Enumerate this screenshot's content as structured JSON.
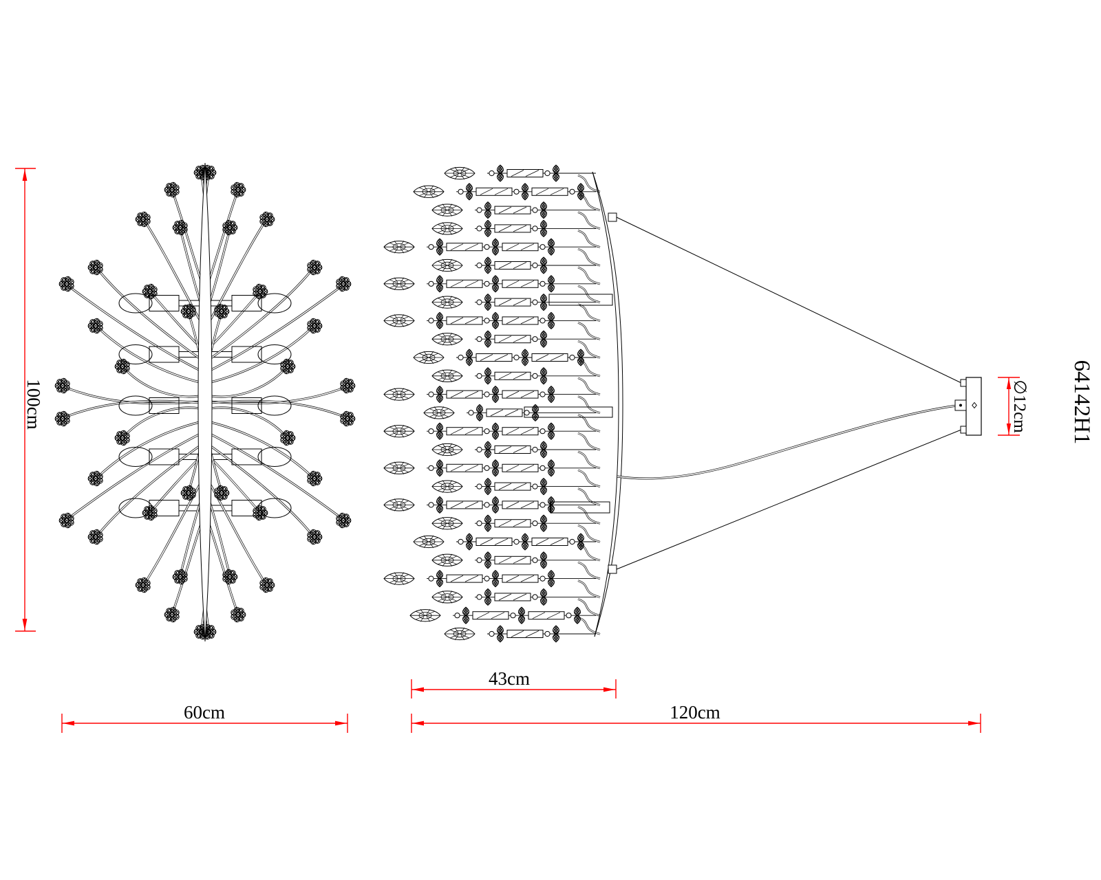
{
  "model_number": "64142H1",
  "dimensions": {
    "height": "100cm",
    "top_view_width": "60cm",
    "fixture_body_width": "43cm",
    "overall_width": "120cm",
    "canopy_diameter": "∅12cm"
  },
  "colors": {
    "dimension_lines": "#ff0000",
    "drawing_lines": "#000000",
    "background": "#ffffff"
  }
}
